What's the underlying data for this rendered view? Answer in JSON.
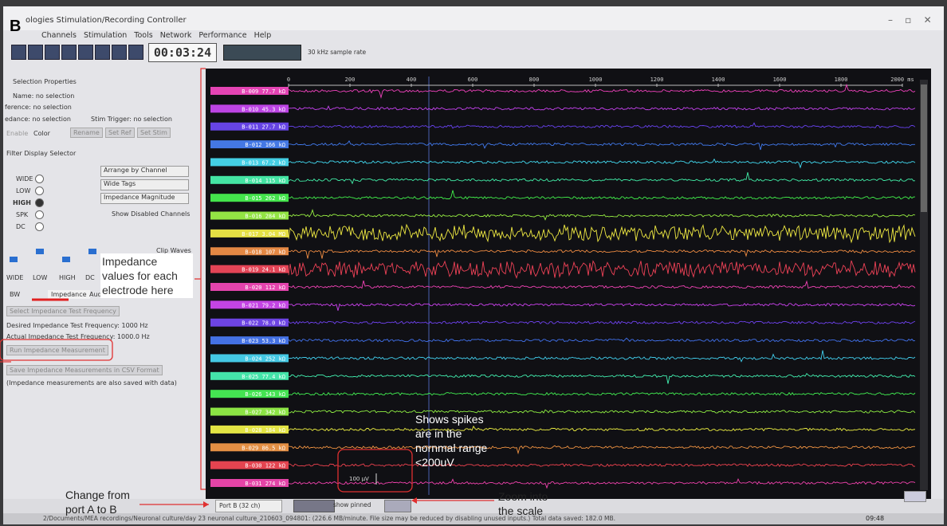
{
  "panel_label": "B",
  "window_title": "ologies Stimulation/Recording Controller",
  "menu": [
    "Channels",
    "Stimulation",
    "Tools",
    "Network",
    "Performance",
    "Help"
  ],
  "timer": "00:03:24",
  "sample_rate": "30 kHz sample rate",
  "left_panel": {
    "selection_properties": "Selection Properties",
    "name": "Name: no selection",
    "reference": "ference: no selection",
    "impedance": "edance: no selection",
    "stim_trigger": "Stim Trigger: no selection",
    "enable": "Enable",
    "color": "Color",
    "rename": "Rename",
    "set_ref": "Set Ref",
    "set_stim": "Set Stim",
    "filter_display_selector": "Filter Display Selector",
    "filters": [
      "WIDE",
      "LOW",
      "HIGH",
      "SPK",
      "DC"
    ],
    "dropdowns": [
      "Arrange by Channel",
      "Wide Tags",
      "Impedance Magnitude"
    ],
    "show_disabled": "Show Disabled Channels",
    "clip_waves": "Clip Waves",
    "slider_labels": [
      "WIDE",
      "LOW",
      "HIGH",
      "DC"
    ],
    "tabs": [
      "BW",
      "Impedance",
      "Audio/"
    ],
    "select_frequency": "Select Impedance Test Frequency",
    "desired_frequency": "Desired Impedance Test Frequency: 1000 Hz",
    "actual_frequency": "Actual Impedance Test Frequency: 1000.0 Hz",
    "run_measurement": "Run Impedance Measurement",
    "save_csv": "Save Impedance Measurements in CSV Format",
    "note": "(Impedance measurements are also saved with data)"
  },
  "time_axis": [
    "0",
    "200",
    "400",
    "600",
    "800",
    "1000",
    "1200",
    "1400",
    "1600",
    "1800",
    "2000 ms"
  ],
  "channels": [
    "B-009 77.7 kΩ",
    "B-010 45.3 kΩ",
    "B-011 27.7 kΩ",
    "B-012 166 kΩ",
    "B-013 67.2 kΩ",
    "B-014 115 kΩ",
    "B-015 262 kΩ",
    "B-016 284 kΩ",
    "B-017 3.04 MΩ",
    "B-018 107 kΩ",
    "B-019 24.1 kΩ",
    "B-020 112 kΩ",
    "B-021 79.2 kΩ",
    "B-022 78.0 kΩ",
    "B-023 53.3 kΩ",
    "B-024 252 kΩ",
    "B-025 77.4 kΩ",
    "B-026 143 kΩ",
    "B-027 342 kΩ",
    "B-028 184 kΩ",
    "B-029 86.5 kΩ",
    "B-030 122 kΩ",
    "B-031 274 kΩ"
  ],
  "scale_bar": "100 µV",
  "bottom_bar": {
    "port": "Port B (32 ch)",
    "show_pinned": "show pinned"
  },
  "status": "2/Documents/MEA recordings/Neuronal culture/day 23 neuronal culture_210603_094801: (226.6 MB/minute. File size may be reduced by disabling unused inputs.) Total data saved: 182.0 MB.",
  "clock": "09:48",
  "annotations": {
    "impedance_values": "Impedance values for each electrode here",
    "spikes": "Shows spikes are in the nornmal range <200uV",
    "port": "Change from port A to B",
    "zoom": "Zoom into the scale"
  }
}
